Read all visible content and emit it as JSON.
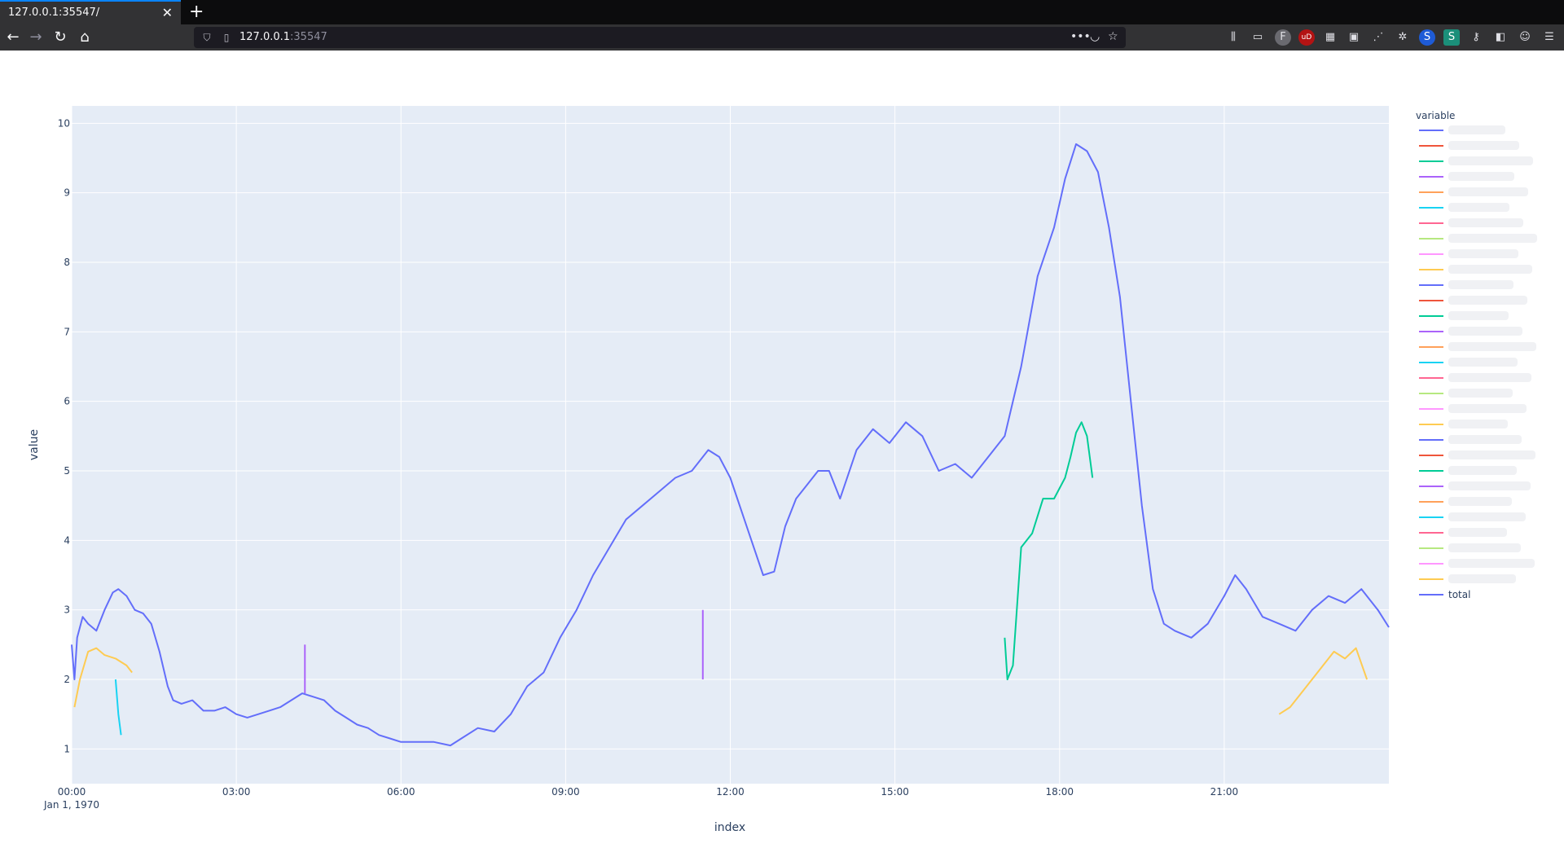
{
  "browser": {
    "tab_title": "127.0.0.1:35547/",
    "close_glyph": "✕",
    "new_tab_glyph": "+",
    "url_host": "127.0.0.1",
    "url_port": ":35547",
    "icons": [
      "back-arrow-icon",
      "forward-arrow-icon",
      "reload-icon",
      "home-icon",
      "shield-icon",
      "page-icon",
      "more-icon",
      "pocket-icon",
      "star-icon",
      "library-icon",
      "sidebar-icon",
      "extension-icons"
    ]
  },
  "chart_data": {
    "type": "line",
    "xlabel": "index",
    "ylabel": "value",
    "legend_title": "variable",
    "legend_position": "right",
    "x_ticks": [
      "00:00",
      "03:00",
      "06:00",
      "09:00",
      "12:00",
      "15:00",
      "18:00",
      "21:00"
    ],
    "x_tick_sub": "Jan 1, 1970",
    "y_ticks": [
      1,
      2,
      3,
      4,
      5,
      6,
      7,
      8,
      9,
      10
    ],
    "ylim": [
      0.5,
      10.25
    ],
    "xlim_hours": [
      0,
      24
    ],
    "grid": true,
    "series": [
      {
        "name": "total",
        "color": "#636efa",
        "x_hours": [
          0.0,
          0.05,
          0.1,
          0.2,
          0.3,
          0.45,
          0.6,
          0.75,
          0.85,
          1.0,
          1.15,
          1.3,
          1.45,
          1.6,
          1.75,
          1.85,
          2.0,
          2.2,
          2.4,
          2.6,
          2.8,
          3.0,
          3.2,
          3.4,
          3.6,
          3.8,
          4.0,
          4.2,
          4.4,
          4.6,
          4.8,
          5.0,
          5.2,
          5.4,
          5.6,
          5.8,
          6.0,
          6.3,
          6.6,
          6.9,
          7.1,
          7.4,
          7.7,
          8.0,
          8.3,
          8.6,
          8.9,
          9.2,
          9.5,
          9.8,
          10.1,
          10.4,
          10.7,
          11.0,
          11.3,
          11.6,
          11.8,
          12.0,
          12.3,
          12.6,
          12.8,
          13.0,
          13.2,
          13.4,
          13.6,
          13.8,
          14.0,
          14.3,
          14.6,
          14.9,
          15.2,
          15.5,
          15.8,
          16.1,
          16.4,
          16.7,
          17.0,
          17.3,
          17.6,
          17.9,
          18.1,
          18.3,
          18.5,
          18.7,
          18.9,
          19.1,
          19.3,
          19.5,
          19.7,
          19.9,
          20.1,
          20.4,
          20.7,
          21.0,
          21.2,
          21.4,
          21.7,
          22.0,
          22.3,
          22.6,
          22.9,
          23.2,
          23.5,
          23.8,
          24.0
        ],
        "values": [
          2.5,
          2.0,
          2.6,
          2.9,
          2.8,
          2.7,
          3.0,
          3.25,
          3.3,
          3.2,
          3.0,
          2.95,
          2.8,
          2.4,
          1.9,
          1.7,
          1.65,
          1.7,
          1.55,
          1.55,
          1.6,
          1.5,
          1.45,
          1.5,
          1.55,
          1.6,
          1.7,
          1.8,
          1.75,
          1.7,
          1.55,
          1.45,
          1.35,
          1.3,
          1.2,
          1.15,
          1.1,
          1.1,
          1.1,
          1.05,
          1.15,
          1.3,
          1.25,
          1.5,
          1.9,
          2.1,
          2.6,
          3.0,
          3.5,
          3.9,
          4.3,
          4.5,
          4.7,
          4.9,
          5.0,
          5.3,
          5.2,
          4.9,
          4.2,
          3.5,
          3.55,
          4.2,
          4.6,
          4.8,
          5.0,
          5.0,
          4.6,
          5.3,
          5.6,
          5.4,
          5.7,
          5.5,
          5.0,
          5.1,
          4.9,
          5.2,
          5.5,
          6.5,
          7.8,
          8.5,
          9.2,
          9.7,
          9.6,
          9.3,
          8.5,
          7.5,
          6.0,
          4.5,
          3.3,
          2.8,
          2.7,
          2.6,
          2.8,
          3.2,
          3.5,
          3.3,
          2.9,
          2.8,
          2.7,
          3.0,
          3.2,
          3.1,
          3.3,
          3.0,
          2.75
        ]
      },
      {
        "name": "",
        "color": "#00cc96",
        "x_hours": [
          17.0,
          17.05,
          17.15,
          17.3,
          17.5,
          17.7,
          17.9,
          18.1,
          18.2,
          18.3,
          18.4,
          18.5,
          18.6
        ],
        "values": [
          2.6,
          2.0,
          2.2,
          3.9,
          4.1,
          4.6,
          4.6,
          4.9,
          5.2,
          5.55,
          5.7,
          5.5,
          4.9
        ]
      },
      {
        "name": "",
        "color": "#fecb52",
        "x_hours": [
          22.0,
          22.2,
          22.4,
          22.6,
          22.8,
          23.0,
          23.2,
          23.4,
          23.6
        ],
        "values": [
          1.5,
          1.6,
          1.8,
          2.0,
          2.2,
          2.4,
          2.3,
          2.45,
          2.0
        ]
      },
      {
        "name": "",
        "color": "#fecb52",
        "x_hours": [
          0.05,
          0.15,
          0.3,
          0.45,
          0.6,
          0.8,
          1.0,
          1.1
        ],
        "values": [
          1.6,
          2.0,
          2.4,
          2.45,
          2.35,
          2.3,
          2.2,
          2.1
        ]
      },
      {
        "name": "",
        "color": "#ab63fa",
        "x_hours": [
          4.25,
          4.25
        ],
        "values": [
          1.8,
          2.5
        ]
      },
      {
        "name": "",
        "color": "#ab63fa",
        "x_hours": [
          11.5,
          11.5
        ],
        "values": [
          2.0,
          3.0
        ]
      },
      {
        "name": "",
        "color": "#19d3f3",
        "x_hours": [
          0.8,
          0.85,
          0.9
        ],
        "values": [
          2.0,
          1.5,
          1.2
        ]
      }
    ],
    "legend_entries_count": 30
  }
}
